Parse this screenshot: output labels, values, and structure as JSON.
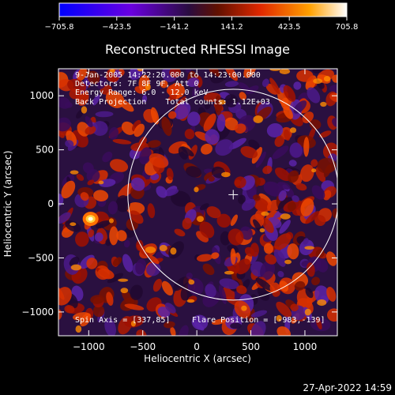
{
  "colorbar": {
    "ticks": [
      "−705.8",
      "−423.5",
      "−141.2",
      "141.2",
      "423.5",
      "705.8"
    ],
    "range": [
      -705.8,
      705.8
    ],
    "colormap": [
      "#0000ff",
      "#7a00d9",
      "#3a0e55",
      "#b02000",
      "#ff3c00",
      "#ffb000",
      "#ffffff"
    ]
  },
  "title": "Reconstructed RHESSI Image",
  "info_lines": [
    "9-Jan-2005 14:22:20.000 to 14:23:00.000",
    "Detectors: 7F 8F 9F, Att 0",
    "Energy Range: 6.0 - 12.0 keV",
    "Back Projection    Total counts: 1.12E+03"
  ],
  "spin_axis": "Spin Axis = [337,85]",
  "flare_position": "Flare Position = [-983,-139]",
  "xlabel": "Heliocentric X (arcsec)",
  "ylabel": "Heliocentric Y (arcsec)",
  "xticks": [
    "−1000",
    "−500",
    "0",
    "500",
    "1000"
  ],
  "yticks": [
    "1000",
    "500",
    "0",
    "−500",
    "−1000"
  ],
  "x_range": [
    -1280,
    1300
  ],
  "y_range": [
    -1220,
    1250
  ],
  "solar_disk": {
    "center": [
      337,
      85
    ],
    "radius": 975
  },
  "crosshair": [
    337,
    85
  ],
  "bright_source": [
    -983,
    -139
  ],
  "timestamp": "27-Apr-2022 14:59"
}
